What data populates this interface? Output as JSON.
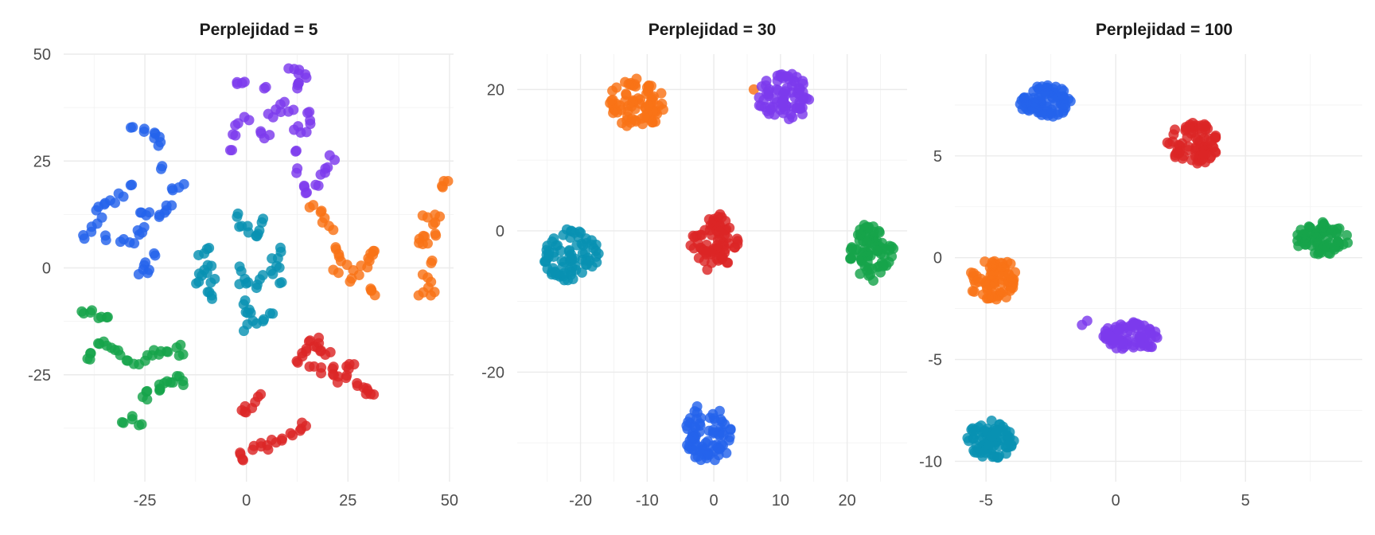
{
  "chart_data": [
    {
      "type": "scatter",
      "title": "Perplejidad = 5",
      "xlim": [
        -45,
        51
      ],
      "ylim": [
        -50,
        50
      ],
      "x_ticks": [
        -25,
        0,
        25,
        50
      ],
      "y_ticks": [
        -25,
        0,
        25,
        50
      ],
      "x_tick_labels": [
        "-25",
        "0",
        "25",
        "50"
      ],
      "y_tick_labels": [
        "-25",
        "0",
        "25",
        "50"
      ],
      "grid": true,
      "series": [
        {
          "color": "#2563eb",
          "points": [
            [
              -40,
              7
            ],
            [
              -38,
              9
            ],
            [
              -36,
              11
            ],
            [
              -37,
              14
            ],
            [
              -35,
              15
            ],
            [
              -33,
              16
            ],
            [
              -31,
              17
            ],
            [
              -29,
              19
            ],
            [
              -34,
              7
            ],
            [
              -31,
              6
            ],
            [
              -28,
              6
            ],
            [
              -26,
              8
            ],
            [
              -25,
              9
            ],
            [
              -26,
              13
            ],
            [
              -24,
              13
            ],
            [
              -22,
              12
            ],
            [
              -20,
              13
            ],
            [
              -19,
              15
            ],
            [
              -18,
              18
            ],
            [
              -16,
              19
            ],
            [
              -21,
              23
            ],
            [
              -21,
              29
            ],
            [
              -22,
              30
            ],
            [
              -22,
              31
            ],
            [
              -25,
              32
            ],
            [
              -28,
              33
            ],
            [
              -26,
              -1
            ],
            [
              -25,
              1
            ],
            [
              -24,
              -1
            ],
            [
              -23,
              3
            ]
          ]
        },
        {
          "color": "#7c3aed",
          "points": [
            [
              -4,
              28
            ],
            [
              -3,
              31
            ],
            [
              -2,
              34
            ],
            [
              0,
              35
            ],
            [
              3,
              32
            ],
            [
              5,
              31
            ],
            [
              6,
              36
            ],
            [
              8,
              37
            ],
            [
              9,
              39
            ],
            [
              11,
              37
            ],
            [
              12,
              33
            ],
            [
              14,
              31
            ],
            [
              15,
              37
            ],
            [
              15,
              34
            ],
            [
              12,
              27
            ],
            [
              13,
              23
            ],
            [
              14,
              19
            ],
            [
              15,
              17
            ],
            [
              17,
              19
            ],
            [
              19,
              22
            ],
            [
              20,
              24
            ],
            [
              21,
              26
            ],
            [
              12,
              42
            ],
            [
              13,
              44
            ],
            [
              14,
              45
            ],
            [
              11,
              46
            ],
            [
              13,
              46
            ],
            [
              4,
              42
            ],
            [
              -2,
              43
            ],
            [
              -1,
              44
            ]
          ]
        },
        {
          "color": "#f97316",
          "points": [
            [
              16,
              14
            ],
            [
              18,
              13
            ],
            [
              19,
              11
            ],
            [
              21,
              9
            ],
            [
              22,
              5
            ],
            [
              23,
              3
            ],
            [
              24,
              1
            ],
            [
              22,
              -1
            ],
            [
              26,
              -3
            ],
            [
              27,
              -1
            ],
            [
              29,
              0
            ],
            [
              30,
              2
            ],
            [
              31,
              3
            ],
            [
              32,
              4
            ],
            [
              30,
              -5
            ],
            [
              31,
              -6
            ],
            [
              42,
              6
            ],
            [
              44,
              6
            ],
            [
              44,
              8
            ],
            [
              46,
              10
            ],
            [
              47,
              12
            ],
            [
              47,
              8
            ],
            [
              48,
              19
            ],
            [
              49,
              20
            ],
            [
              44,
              -2
            ],
            [
              45,
              -4
            ],
            [
              46,
              -6
            ],
            [
              44,
              12
            ],
            [
              43,
              -6
            ],
            [
              45,
              1
            ]
          ]
        },
        {
          "color": "#0891b2",
          "points": [
            [
              -12,
              -4
            ],
            [
              -11,
              -2
            ],
            [
              -10,
              -1
            ],
            [
              -11,
              3
            ],
            [
              -10,
              5
            ],
            [
              -9,
              0
            ],
            [
              -8,
              -3
            ],
            [
              -9,
              -6
            ],
            [
              -8,
              -7
            ],
            [
              -2,
              12
            ],
            [
              -1,
              10
            ],
            [
              0,
              9
            ],
            [
              2,
              8
            ],
            [
              4,
              11
            ],
            [
              3,
              8
            ],
            [
              -2,
              0
            ],
            [
              -1,
              -3
            ],
            [
              0,
              -4
            ],
            [
              2,
              -4
            ],
            [
              4,
              -2
            ],
            [
              6,
              -1
            ],
            [
              8,
              0
            ],
            [
              8,
              -3
            ],
            [
              7,
              3
            ],
            [
              8,
              4
            ],
            [
              -1,
              -8
            ],
            [
              0,
              -10
            ],
            [
              1,
              -11
            ],
            [
              2,
              -13
            ],
            [
              4,
              -12
            ],
            [
              6,
              -11
            ],
            [
              0,
              -14
            ]
          ]
        },
        {
          "color": "#dc2626",
          "points": [
            [
              12,
              -22
            ],
            [
              13,
              -20
            ],
            [
              14,
              -19
            ],
            [
              15,
              -17
            ],
            [
              17,
              -18
            ],
            [
              18,
              -17
            ],
            [
              19,
              -19
            ],
            [
              20,
              -20
            ],
            [
              16,
              -23
            ],
            [
              19,
              -24
            ],
            [
              21,
              -23
            ],
            [
              22,
              -25
            ],
            [
              23,
              -26
            ],
            [
              24,
              -25
            ],
            [
              25,
              -23
            ],
            [
              26,
              -22
            ],
            [
              27,
              -27
            ],
            [
              29,
              -28
            ],
            [
              30,
              -29
            ],
            [
              31,
              -30
            ],
            [
              -1,
              -34
            ],
            [
              0,
              -33
            ],
            [
              2,
              -32
            ],
            [
              3,
              -30
            ],
            [
              -2,
              -43
            ],
            [
              -1,
              -45
            ],
            [
              2,
              -42
            ],
            [
              4,
              -41
            ],
            [
              5,
              -42
            ],
            [
              7,
              -41
            ],
            [
              9,
              -40
            ],
            [
              11,
              -39
            ],
            [
              13,
              -38
            ],
            [
              14,
              -37
            ]
          ]
        },
        {
          "color": "#16a34a",
          "points": [
            [
              -40,
              -10
            ],
            [
              -38,
              -10
            ],
            [
              -36,
              -11
            ],
            [
              -34,
              -11
            ],
            [
              -39,
              -21
            ],
            [
              -38,
              -20
            ],
            [
              -36,
              -17
            ],
            [
              -35,
              -18
            ],
            [
              -33,
              -19
            ],
            [
              -31,
              -20
            ],
            [
              -29,
              -21
            ],
            [
              -27,
              -22
            ],
            [
              -25,
              -21
            ],
            [
              -23,
              -20
            ],
            [
              -21,
              -20
            ],
            [
              -19,
              -20
            ],
            [
              -17,
              -18
            ],
            [
              -16,
              -21
            ],
            [
              -30,
              -36
            ],
            [
              -28,
              -35
            ],
            [
              -26,
              -36
            ],
            [
              -25,
              -30
            ],
            [
              -24,
              -29
            ],
            [
              -22,
              -28
            ],
            [
              -21,
              -28
            ],
            [
              -20,
              -27
            ],
            [
              -18,
              -26
            ],
            [
              -17,
              -25
            ],
            [
              -16,
              -27
            ]
          ]
        }
      ]
    },
    {
      "type": "scatter",
      "title": "Perplejidad = 30",
      "xlim": [
        -29.5,
        29
      ],
      "ylim": [
        -35.5,
        25
      ],
      "x_ticks": [
        -20,
        -10,
        0,
        10,
        20
      ],
      "y_ticks": [
        -20,
        0,
        20
      ],
      "x_tick_labels": [
        "-20",
        "-10",
        "0",
        "10",
        "20"
      ],
      "y_tick_labels": [
        "-20",
        "0",
        "20"
      ],
      "grid": true,
      "series": [
        {
          "color": "#f97316",
          "clusters": [
            {
              "cx": -11.5,
              "cy": 18,
              "rx": 4.2,
              "ry": 3.5,
              "n": 80
            }
          ],
          "points": [
            [
              6,
              20
            ]
          ]
        },
        {
          "color": "#7c3aed",
          "clusters": [
            {
              "cx": 10.5,
              "cy": 19,
              "rx": 3.8,
              "ry": 3.3,
              "n": 80
            }
          ],
          "points": []
        },
        {
          "color": "#0891b2",
          "clusters": [
            {
              "cx": -21.5,
              "cy": -3.5,
              "rx": 4.3,
              "ry": 3.6,
              "n": 80
            }
          ],
          "points": []
        },
        {
          "color": "#dc2626",
          "clusters": [
            {
              "cx": 0,
              "cy": -1.5,
              "rx": 3.5,
              "ry": 4.0,
              "n": 80
            }
          ],
          "points": []
        },
        {
          "color": "#16a34a",
          "clusters": [
            {
              "cx": 23.5,
              "cy": -3,
              "rx": 3.4,
              "ry": 4.0,
              "n": 80
            }
          ],
          "points": []
        },
        {
          "color": "#2563eb",
          "clusters": [
            {
              "cx": -1,
              "cy": -28.5,
              "rx": 3.6,
              "ry": 4.3,
              "n": 80
            }
          ],
          "points": []
        }
      ]
    },
    {
      "type": "scatter",
      "title": "Perplejidad = 100",
      "xlim": [
        -6.2,
        9.5
      ],
      "ylim": [
        -11,
        10
      ],
      "x_ticks": [
        -5,
        0,
        5
      ],
      "y_ticks": [
        -10,
        -5,
        0,
        5
      ],
      "x_tick_labels": [
        "-5",
        "0",
        "5"
      ],
      "y_tick_labels": [
        "-10",
        "-5",
        "0",
        "5"
      ],
      "grid": true,
      "series": [
        {
          "color": "#2563eb",
          "clusters": [
            {
              "cx": -2.7,
              "cy": 7.7,
              "rx": 1.0,
              "ry": 0.8,
              "n": 80
            }
          ],
          "points": []
        },
        {
          "color": "#dc2626",
          "clusters": [
            {
              "cx": 3.0,
              "cy": 5.6,
              "rx": 0.95,
              "ry": 1.0,
              "n": 80
            }
          ],
          "points": []
        },
        {
          "color": "#16a34a",
          "clusters": [
            {
              "cx": 7.9,
              "cy": 0.9,
              "rx": 1.0,
              "ry": 0.8,
              "n": 80
            }
          ],
          "points": []
        },
        {
          "color": "#f97316",
          "clusters": [
            {
              "cx": -4.7,
              "cy": -1.1,
              "rx": 1.0,
              "ry": 1.0,
              "n": 80
            }
          ],
          "points": []
        },
        {
          "color": "#7c3aed",
          "clusters": [
            {
              "cx": 0.6,
              "cy": -3.9,
              "rx": 1.05,
              "ry": 0.7,
              "n": 80
            }
          ],
          "points": [
            [
              -1.1,
              -3.1
            ],
            [
              -1.3,
              -3.3
            ]
          ]
        },
        {
          "color": "#0891b2",
          "clusters": [
            {
              "cx": -4.8,
              "cy": -8.9,
              "rx": 0.9,
              "ry": 0.95,
              "n": 80
            }
          ],
          "points": []
        }
      ]
    }
  ]
}
